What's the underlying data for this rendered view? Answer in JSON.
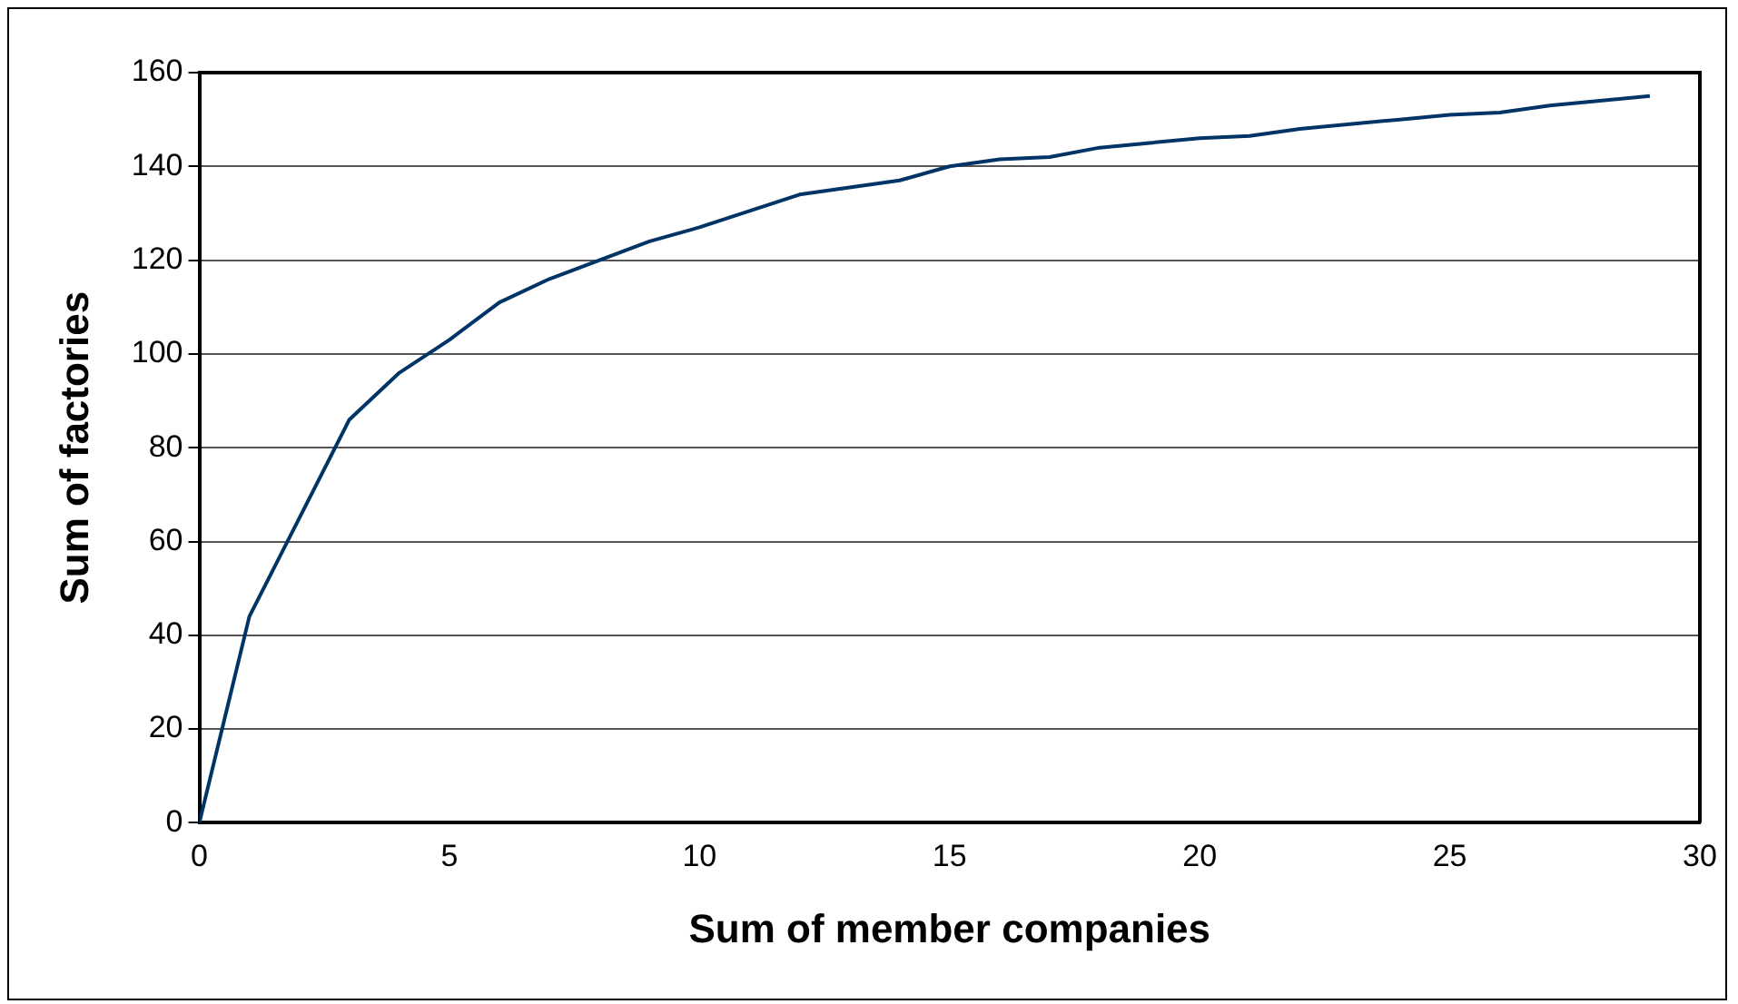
{
  "chart_data": {
    "type": "line",
    "xlabel": "Sum of member companies",
    "ylabel": "Sum of factories",
    "x": [
      0,
      1,
      2,
      3,
      4,
      5,
      6,
      7,
      8,
      9,
      10,
      11,
      12,
      13,
      14,
      15,
      16,
      17,
      18,
      19,
      20,
      21,
      22,
      23,
      24,
      25,
      26,
      27,
      28,
      29
    ],
    "series": [
      {
        "color": "#003366",
        "values": [
          0,
          44,
          65,
          86,
          96,
          103,
          111,
          116,
          120,
          124,
          127,
          130.5,
          134,
          135.5,
          137,
          140,
          141.5,
          142,
          144,
          145,
          146,
          146.5,
          148,
          149,
          150,
          151,
          151.5,
          153,
          154,
          155
        ]
      }
    ],
    "xlim": [
      0,
      30
    ],
    "xticks": [
      0,
      5,
      10,
      15,
      20,
      25,
      30
    ],
    "ylim": [
      0,
      160
    ],
    "yticks": [
      0,
      20,
      40,
      60,
      80,
      100,
      120,
      140,
      160
    ],
    "grid": "y",
    "legend": false,
    "marker": "none",
    "line_style": "solid"
  }
}
